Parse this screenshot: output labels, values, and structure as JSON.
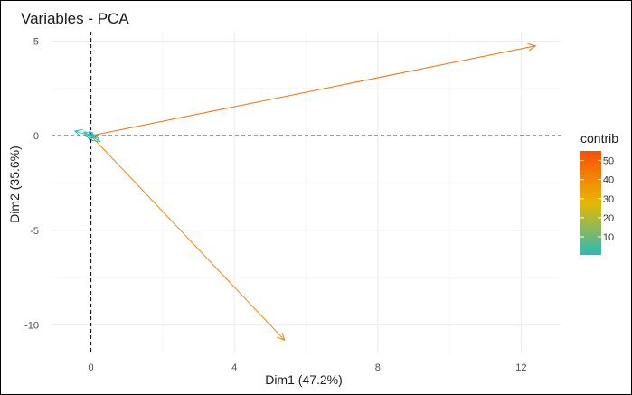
{
  "chart_data": {
    "type": "scatter",
    "subtype": "pca-variable-arrows",
    "title": "Variables - PCA",
    "xlabel": "Dim1 (47.2%)",
    "ylabel": "Dim2 (35.6%)",
    "xlim": [
      -1.1,
      13.1
    ],
    "ylim": [
      -11.5,
      5.5
    ],
    "x_ticks": [
      0,
      4,
      8,
      12
    ],
    "y_ticks": [
      5,
      0,
      -5,
      -10
    ],
    "x_tick_labels": [
      "0",
      "4",
      "8",
      "12"
    ],
    "y_tick_labels": [
      "5",
      "0",
      "-5",
      "-10"
    ],
    "grid": true,
    "reference_lines": {
      "x": 0,
      "y": 0,
      "style": "dashed"
    },
    "legend": {
      "title": "contrib",
      "placement": "right",
      "ticks": [
        10,
        20,
        30,
        40,
        50
      ],
      "tick_labels": [
        "10",
        "20",
        "30",
        "40",
        "50"
      ],
      "range": [
        0.5,
        55
      ],
      "colors": [
        "#2eb8b8",
        "#e7b800",
        "#fc4e07"
      ]
    },
    "series": [
      {
        "points": [
          {
            "x": 12.4,
            "y": 4.75,
            "contrib": 47
          },
          {
            "x": 5.4,
            "y": -10.8,
            "contrib": 41
          },
          {
            "x": -0.45,
            "y": 0.25,
            "contrib": 1
          },
          {
            "x": -0.2,
            "y": 0.2,
            "contrib": 2
          },
          {
            "x": 0.15,
            "y": -0.1,
            "contrib": 3
          },
          {
            "x": 0.25,
            "y": -0.3,
            "contrib": 2
          },
          {
            "x": 0.05,
            "y": 0.15,
            "contrib": 1
          },
          {
            "x": -0.05,
            "y": -0.2,
            "contrib": 1
          }
        ]
      }
    ]
  }
}
